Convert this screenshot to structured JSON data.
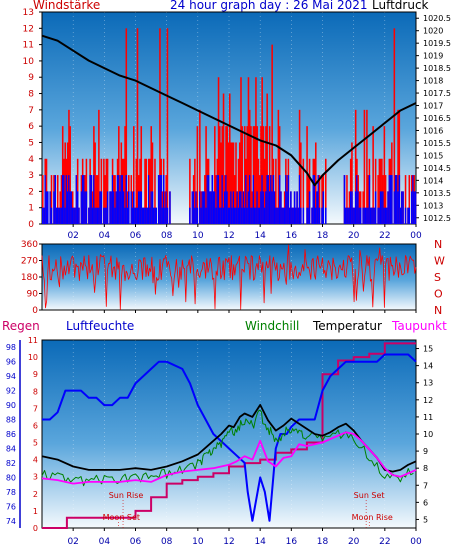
{
  "colors": {
    "bg_top": "#0b6ab8",
    "bg_bottom": "#eef6fc",
    "wind_peak": "#ff0000",
    "wind_avg": "#0000ff",
    "pressure": "#000000",
    "direction": "#ff0000",
    "humidity": "#0000ff",
    "windchill": "#008000",
    "temperature": "#000000",
    "dewpoint": "#ff00ff",
    "rain": "#cc0066",
    "axis_left": "#cc0000",
    "axis_humidity": "#0000cc",
    "title": "#0000cc"
  },
  "header": {
    "left": "Windstärke",
    "title": "24 hour graph day : 26 Mai 2021",
    "right": "Luftdruck"
  },
  "panel3_labels": {
    "rain": "Regen",
    "humidity": "Luftfeuchte",
    "windchill": "Windchill",
    "temperature": "Temperatur",
    "dewpoint": "Taupunkt"
  },
  "annotations": {
    "sun_rise": "Sun Rise",
    "moon_set": "Moon Set",
    "sun_set": "Sun Set",
    "moon_rise": "Moon Rise"
  },
  "chart_data": [
    {
      "type": "bar",
      "name": "wind_and_pressure",
      "x_ticks": [
        "02",
        "04",
        "06",
        "08",
        "10",
        "12",
        "14",
        "16",
        "18",
        "20",
        "22",
        "00"
      ],
      "left_axis": {
        "label": "Windstärke",
        "range": [
          0,
          13
        ],
        "ticks": [
          "0",
          "1",
          "2",
          "3",
          "4",
          "5",
          "6",
          "7",
          "8",
          "9",
          "10",
          "11",
          "12",
          "13"
        ]
      },
      "right_axis": {
        "label": "Luftdruck",
        "range": [
          1012.25,
          1020.75
        ],
        "ticks": [
          "1012.5",
          "1013",
          "1013.5",
          "1014",
          "1014.5",
          "1015",
          "1015.5",
          "1016",
          "1016.5",
          "1017",
          "1017.5",
          "1018",
          "1018.5",
          "1019",
          "1019.5",
          "1020",
          "1020.5"
        ]
      },
      "series": [
        {
          "name": "Luftdruck",
          "x": [
            0,
            1,
            2,
            3,
            4,
            5,
            6,
            7,
            8,
            9,
            10,
            11,
            12,
            13,
            14,
            15,
            16,
            17,
            17.5,
            18,
            19,
            20,
            21,
            22,
            23,
            24
          ],
          "values": [
            1019.8,
            1019.6,
            1019.2,
            1018.8,
            1018.5,
            1018.2,
            1018.0,
            1017.7,
            1017.4,
            1017.1,
            1016.8,
            1016.5,
            1016.2,
            1015.9,
            1015.6,
            1015.4,
            1015.0,
            1014.3,
            1013.8,
            1014.2,
            1014.8,
            1015.3,
            1015.8,
            1016.3,
            1016.8,
            1017.1
          ]
        }
      ]
    },
    {
      "type": "line",
      "name": "wind_direction",
      "y_ticks": [
        "0",
        "90",
        "180",
        "270",
        "360"
      ],
      "y_range": [
        0,
        360
      ],
      "direction_labels": [
        "N",
        "W",
        "S",
        "O",
        "N"
      ]
    },
    {
      "type": "line",
      "name": "temperature_humidity",
      "x_ticks": [
        "02",
        "04",
        "06",
        "08",
        "10",
        "12",
        "14",
        "16",
        "18",
        "20",
        "22",
        "00"
      ],
      "rain_axis": {
        "range": [
          0,
          11
        ],
        "ticks": [
          "0",
          "1",
          "2",
          "3",
          "4",
          "5",
          "6",
          "7",
          "8",
          "9",
          "10",
          "11"
        ]
      },
      "humidity_axis": {
        "range": [
          73,
          99
        ],
        "ticks": [
          "74",
          "76",
          "78",
          "80",
          "82",
          "84",
          "86",
          "88",
          "90",
          "92",
          "94",
          "96",
          "98"
        ]
      },
      "temperature_axis": {
        "range": [
          4.5,
          15.5
        ],
        "ticks": [
          "5",
          "6",
          "7",
          "8",
          "9",
          "10",
          "11",
          "12",
          "13",
          "14",
          "15"
        ]
      },
      "series": [
        {
          "name": "Luftfeuchte",
          "x": [
            0,
            0.5,
            1,
            1.5,
            2,
            2.5,
            3,
            3.5,
            4,
            4.5,
            5,
            5.5,
            6,
            7,
            7.5,
            8,
            9,
            9.5,
            10,
            10.5,
            11,
            11.5,
            12,
            12.5,
            13,
            13.2,
            13.5,
            14,
            14.3,
            14.6,
            15,
            15.3,
            15.7,
            16,
            16.5,
            17,
            17.5,
            18,
            18.5,
            19,
            19.5,
            20,
            21,
            21.5,
            22,
            22.5,
            23,
            23.5,
            24
          ],
          "values": [
            88,
            88,
            89,
            92,
            92,
            92,
            91,
            91,
            90,
            90,
            91,
            91,
            93,
            95,
            96,
            96,
            95,
            93,
            90,
            88,
            86,
            85,
            84,
            83,
            82,
            78,
            74,
            80,
            78,
            74,
            84,
            86,
            86,
            87,
            88,
            88,
            88,
            92,
            94,
            95,
            96,
            96,
            96,
            96,
            97,
            97,
            97,
            97,
            96
          ]
        },
        {
          "name": "Temperatur",
          "x": [
            0,
            1,
            2,
            3,
            4,
            5,
            6,
            7,
            8,
            9,
            10,
            10.5,
            11,
            11.5,
            12,
            12.3,
            12.7,
            13,
            13.5,
            14,
            14.5,
            15,
            15.5,
            16,
            16.5,
            17,
            17.5,
            18,
            18.5,
            19,
            19.5,
            20,
            20.5,
            21,
            21.5,
            22,
            22.5,
            23,
            23.5,
            24
          ],
          "values": [
            8.7,
            8.5,
            8.1,
            7.9,
            7.9,
            7.9,
            8.0,
            7.9,
            8.1,
            8.4,
            8.8,
            9.2,
            9.6,
            10.0,
            10.5,
            10.4,
            11.0,
            11.2,
            11.0,
            11.7,
            10.8,
            10.2,
            10.5,
            10.9,
            10.6,
            10.3,
            10.0,
            9.9,
            10.1,
            10.4,
            10.6,
            10.2,
            9.6,
            9.1,
            8.6,
            7.9,
            7.8,
            7.9,
            8.2,
            8.4
          ]
        },
        {
          "name": "Windchill",
          "x": [
            0,
            1,
            2,
            3,
            4,
            5,
            6,
            7,
            8,
            9,
            10,
            10.5,
            11,
            11.5,
            12,
            12.5,
            13,
            13.5,
            14,
            14.5,
            15,
            15.5,
            16,
            16.5,
            17,
            18,
            19,
            20,
            21,
            22,
            23,
            24
          ],
          "values": [
            8.0,
            7.8,
            7.5,
            7.6,
            7.7,
            7.6,
            7.8,
            7.7,
            8.0,
            8.2,
            8.6,
            9.0,
            9.4,
            9.8,
            10.3,
            10.6,
            11.0,
            10.8,
            11.5,
            10.6,
            10.0,
            10.3,
            10.7,
            10.4,
            10.2,
            9.9,
            10.3,
            10.1,
            9.0,
            7.9,
            7.7,
            8.3
          ]
        },
        {
          "name": "Taupunkt",
          "x": [
            0,
            1,
            2,
            3,
            4,
            5,
            6,
            7,
            8,
            9,
            10,
            11,
            12,
            12.5,
            13,
            13.5,
            14,
            14.5,
            15,
            15.5,
            16,
            16.5,
            17,
            17.5,
            18,
            18.5,
            19,
            19.5,
            20,
            20.5,
            21,
            21.5,
            22,
            22.5,
            23,
            23.5,
            24
          ],
          "values": [
            7.4,
            7.3,
            7.1,
            7.2,
            7.2,
            7.2,
            7.3,
            7.2,
            7.6,
            7.8,
            7.9,
            8.0,
            8.2,
            8.4,
            8.7,
            8.5,
            9.6,
            8.4,
            8.1,
            8.6,
            8.7,
            9.4,
            9.3,
            9.4,
            9.5,
            9.7,
            9.9,
            10.1,
            10.0,
            9.6,
            9.1,
            8.6,
            8.0,
            7.6,
            7.5,
            7.7,
            7.9
          ]
        },
        {
          "name": "Regen",
          "x": [
            0,
            1.5,
            1.6,
            5,
            6,
            7,
            8,
            9,
            10,
            11,
            12,
            13,
            14,
            15,
            16,
            17,
            18,
            19,
            20,
            21,
            22,
            23,
            24
          ],
          "values": [
            0,
            0,
            0.6,
            0.6,
            1.0,
            1.8,
            2.6,
            2.8,
            3.0,
            3.2,
            3.6,
            3.8,
            4.0,
            4.4,
            4.6,
            5.0,
            9.0,
            9.8,
            10.0,
            10.2,
            10.8,
            10.8,
            10.8
          ]
        }
      ]
    }
  ]
}
